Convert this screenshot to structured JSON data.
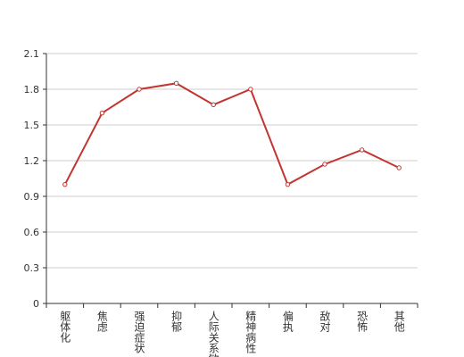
{
  "chart_data": {
    "type": "line",
    "categories": [
      "躯体化",
      "焦虑",
      "强迫症状",
      "抑郁",
      "人际关系敏感",
      "精神病性",
      "偏执",
      "敌对",
      "恐怖",
      "其他"
    ],
    "series": [
      {
        "color": "#c23531",
        "values": [
          1.0,
          1.6,
          1.8,
          1.85,
          1.67,
          1.8,
          1.0,
          1.17,
          1.29,
          1.14
        ]
      }
    ],
    "ylim": [
      0,
      2.1
    ],
    "yticks": [
      0,
      0.3,
      0.6,
      0.9,
      1.2,
      1.5,
      1.8,
      2.1
    ],
    "grid": true
  }
}
